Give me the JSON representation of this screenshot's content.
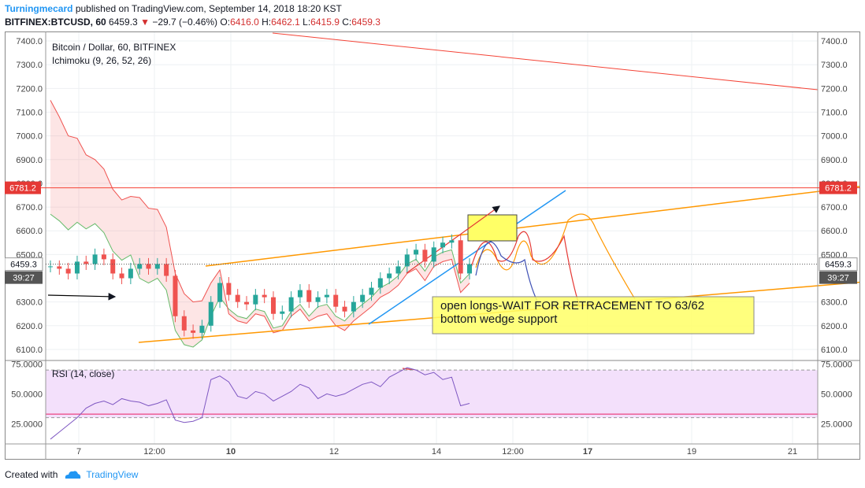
{
  "header": {
    "author": "Turningmecard",
    "published_text": "published on TradingView.com, September 14, 2018 18:20 KST",
    "symbol": "BITFINEX:BTCUSD, 60",
    "last": "6459.3",
    "change": "−29.7 (−0.46%)",
    "o_label": "O:",
    "o_value": "6416.0",
    "h_label": "H:",
    "h_value": "6462.1",
    "l_label": "L:",
    "l_value": "6415.9",
    "c_label": "C:",
    "c_value": "6459.3"
  },
  "footer": {
    "created_with": "Created with",
    "brand": "TradingView"
  },
  "colors": {
    "up": "#26a69a",
    "down": "#ef5350",
    "accent": "#2196f3",
    "orange": "#ff9800",
    "rsi_fill": "#f3e0fb",
    "rsi_line": "#7e57c2"
  },
  "chart_data": {
    "type": "candlestick",
    "title": "Bitcoin / Dollar, 60, BITFINEX",
    "indicator": "Ichimoku (9, 26, 52, 26)",
    "price_axis": {
      "ticks": [
        7400,
        7300,
        7200,
        7100,
        7000,
        6900,
        6800,
        6700,
        6600,
        6500,
        6300,
        6200,
        6100
      ],
      "ylim": [
        6060,
        7440
      ]
    },
    "time_axis": {
      "ticks": [
        "7",
        "12:00",
        "10",
        "12",
        "14",
        "12:00",
        "17",
        "19",
        "21"
      ]
    },
    "last_price_label": "6459.3",
    "countdown_label": "39:27",
    "resistance_label": "6781.2",
    "resistance_level": 6781.2,
    "price_series": [
      6450,
      6440,
      6420,
      6470,
      6460,
      6500,
      6480,
      6420,
      6400,
      6440,
      6460,
      6440,
      6460,
      6410,
      6240,
      6180,
      6170,
      6200,
      6300,
      6380,
      6330,
      6300,
      6290,
      6330,
      6320,
      6250,
      6260,
      6320,
      6350,
      6300,
      6320,
      6330,
      6280,
      6260,
      6300,
      6330,
      6360,
      6400,
      6420,
      6450,
      6500,
      6520,
      6470,
      6530,
      6550,
      6560,
      6420,
      6459.3
    ],
    "annotation": {
      "text_line1": "open longs-WAIT FOR RETRACEMENT TO 63/62",
      "text_line2": "bottom wedge support"
    },
    "rsi": {
      "label": "RSI (14, close)",
      "ticks": [
        "75.0000",
        "50.0000",
        "25.0000"
      ],
      "upper_band": 70,
      "lower_band": 30,
      "ylim": [
        8,
        78
      ],
      "values": [
        12,
        18,
        24,
        30,
        38,
        42,
        44,
        41,
        46,
        44,
        43,
        40,
        42,
        45,
        28,
        26,
        27,
        30,
        62,
        65,
        60,
        48,
        46,
        52,
        50,
        44,
        48,
        52,
        58,
        55,
        46,
        50,
        48,
        50,
        54,
        58,
        60,
        56,
        64,
        68,
        72,
        70,
        66,
        68,
        62,
        64,
        40,
        42
      ]
    }
  }
}
